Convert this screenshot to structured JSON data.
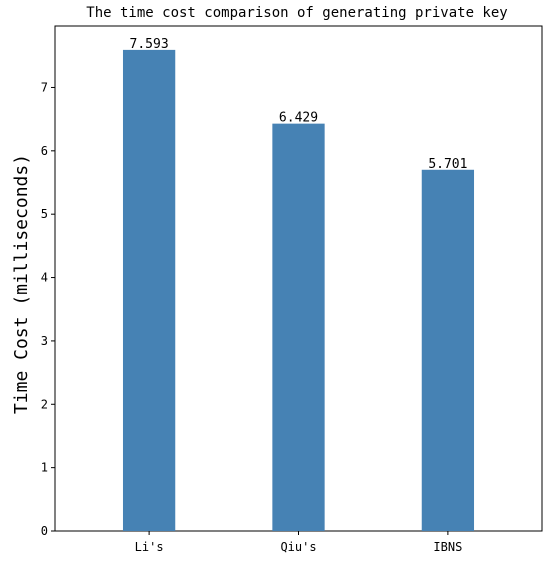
{
  "chart_data": {
    "type": "bar",
    "title": "The time cost comparison of generating private key",
    "xlabel": "",
    "ylabel": "Time Cost (milliseconds)",
    "categories": [
      "Li's",
      "Qiu's",
      "IBNS"
    ],
    "values": [
      7.593,
      6.429,
      5.701
    ],
    "value_labels": [
      "7.593",
      "6.429",
      "5.701"
    ],
    "ylim": [
      0,
      7.97
    ],
    "yticks": [
      0,
      1,
      2,
      3,
      4,
      5,
      6,
      7
    ],
    "grid": false,
    "legend": "none",
    "bar_color": "#4682B4"
  }
}
